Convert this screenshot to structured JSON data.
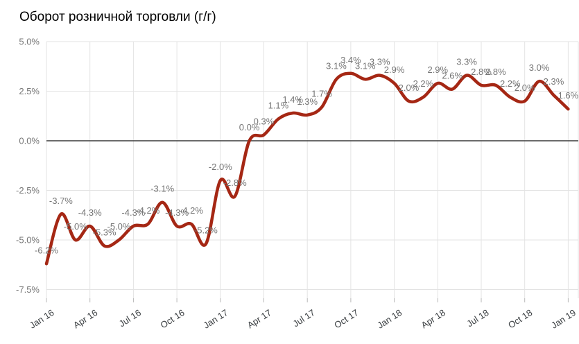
{
  "chart_data": {
    "type": "line",
    "title": "Оборот розничной торговли (г/г)",
    "x": [
      "Jan 16",
      "Feb 16",
      "Mar 16",
      "Apr 16",
      "May 16",
      "Jun 16",
      "Jul 16",
      "Aug 16",
      "Sep 16",
      "Oct 16",
      "Nov 16",
      "Dec 16",
      "Jan 17",
      "Feb 17",
      "Mar 17",
      "Apr 17",
      "May 17",
      "Jun 17",
      "Jul 17",
      "Aug 17",
      "Sep 17",
      "Oct 17",
      "Nov 17",
      "Dec 17",
      "Jan 18",
      "Feb 18",
      "Mar 18",
      "Apr 18",
      "May 18",
      "Jun 18",
      "Jul 18",
      "Aug 18",
      "Sep 18",
      "Oct 18",
      "Nov 18",
      "Dec 18",
      "Jan 19"
    ],
    "values": [
      -6.2,
      -3.7,
      -5.0,
      -4.3,
      -5.3,
      -5.0,
      -4.3,
      -4.2,
      -3.1,
      -4.3,
      -4.2,
      -5.2,
      -2.0,
      -2.8,
      0.0,
      0.3,
      1.1,
      1.4,
      1.3,
      1.7,
      3.1,
      3.4,
      3.1,
      3.3,
      2.9,
      2.0,
      2.2,
      2.9,
      2.6,
      3.3,
      2.8,
      2.8,
      2.2,
      2.0,
      3.0,
      2.3,
      1.6
    ],
    "point_labels": [
      "-6.2%",
      "-3.7%",
      "-5.0%",
      "-4.3%",
      "-5.3%",
      "-5.0%",
      "-4.3%",
      "-4.2%",
      "-3.1%",
      "-4.3%",
      "-4.2%",
      "-5.2%",
      "-2.0%",
      "-2.8%",
      "0.0%",
      "0.3%",
      "1.1%",
      "1.4%",
      "1.3%",
      "1.7%",
      "3.1%",
      "3.4%",
      "3.1%",
      "3.3%",
      "2.9%",
      "2.0%",
      "2.2%",
      "2.9%",
      "2.6%",
      "3.3%",
      "2.8%",
      "2.8%",
      "2.2%",
      "2.0%",
      "3.0%",
      "2.3%",
      "1.6%"
    ],
    "x_tick_labels": [
      "Jan 16",
      "Apr 16",
      "Jul 16",
      "Oct 16",
      "Jan 17",
      "Apr 17",
      "Jul 17",
      "Oct 17",
      "Jan 18",
      "Apr 18",
      "Jul 18",
      "Oct 18",
      "Jan 19"
    ],
    "y_tick_labels": [
      "5.0%",
      "2.5%",
      "0.0%",
      "-2.5%",
      "-5.0%",
      "-7.5%"
    ],
    "y_ticks": [
      5.0,
      2.5,
      0.0,
      -2.5,
      -5.0,
      -7.5
    ],
    "ylim": [
      -7.9,
      5.0
    ],
    "grid": true,
    "legend": "none",
    "series_color": "#a52714",
    "point_label_color": "#757575",
    "y_axis_label_color": "#757575",
    "x_axis_label_color": "#3c4043",
    "gridline_color": "#e3e3e3",
    "zero_line_color": "#3a3a3a",
    "tick_color": "#b7b7b7"
  }
}
